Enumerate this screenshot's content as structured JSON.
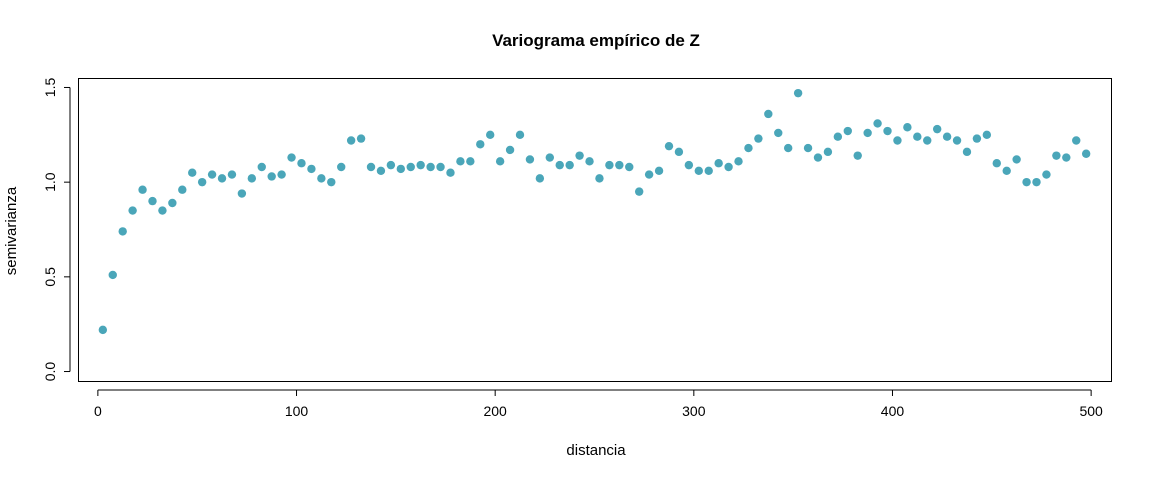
{
  "chart_data": {
    "type": "scatter",
    "title": "Variograma empírico de Z",
    "xlabel": "distancia",
    "ylabel": "semivarianza",
    "xlim": [
      -10,
      510
    ],
    "ylim": [
      -0.05,
      1.55
    ],
    "x_ticks": [
      0,
      100,
      200,
      300,
      400,
      500
    ],
    "y_ticks": [
      0.0,
      0.5,
      1.0,
      1.5
    ],
    "x_tick_labels": [
      "0",
      "100",
      "200",
      "300",
      "400",
      "500"
    ],
    "y_tick_labels": [
      "0.0",
      "0.5",
      "1.0",
      "1.5"
    ],
    "grid": false,
    "point_color": "#4aa6b9",
    "series": [
      {
        "x": [
          2.5,
          7.5,
          12.5,
          17.5,
          22.5,
          27.5,
          32.5,
          37.5,
          42.5,
          47.5,
          52.5,
          57.5,
          62.5,
          67.5,
          72.5,
          77.5,
          82.5,
          87.5,
          92.5,
          97.5,
          102.5,
          107.5,
          112.5,
          117.5,
          122.5,
          127.5,
          132.5,
          137.5,
          142.5,
          147.5,
          152.5,
          157.5,
          162.5,
          167.5,
          172.5,
          177.5,
          182.5,
          187.5,
          192.5,
          197.5,
          202.5,
          207.5,
          212.5,
          217.5,
          222.5,
          227.5,
          232.5,
          237.5,
          242.5,
          247.5,
          252.5,
          257.5,
          262.5,
          267.5,
          272.5,
          277.5,
          282.5,
          287.5,
          292.5,
          297.5,
          302.5,
          307.5,
          312.5,
          317.5,
          322.5,
          327.5,
          332.5,
          337.5,
          342.5,
          347.5,
          352.5,
          357.5,
          362.5,
          367.5,
          372.5,
          377.5,
          382.5,
          387.5,
          392.5,
          397.5,
          402.5,
          407.5,
          412.5,
          417.5,
          422.5,
          427.5,
          432.5,
          437.5,
          442.5,
          447.5,
          452.5,
          457.5,
          462.5,
          467.5,
          472.5,
          477.5,
          482.5,
          487.5,
          492.5,
          497.5
        ],
        "y": [
          0.22,
          0.51,
          0.74,
          0.85,
          0.96,
          0.9,
          0.85,
          0.89,
          0.96,
          1.05,
          1.0,
          1.04,
          1.02,
          1.04,
          0.94,
          1.02,
          1.08,
          1.03,
          1.04,
          1.13,
          1.1,
          1.07,
          1.02,
          1.0,
          1.08,
          1.22,
          1.23,
          1.08,
          1.06,
          1.09,
          1.07,
          1.08,
          1.09,
          1.08,
          1.08,
          1.05,
          1.11,
          1.11,
          1.2,
          1.25,
          1.11,
          1.17,
          1.25,
          1.12,
          1.02,
          1.13,
          1.09,
          1.09,
          1.14,
          1.11,
          1.02,
          1.09,
          1.09,
          1.08,
          0.95,
          1.04,
          1.06,
          1.19,
          1.16,
          1.09,
          1.06,
          1.06,
          1.1,
          1.08,
          1.11,
          1.18,
          1.23,
          1.36,
          1.26,
          1.18,
          1.47,
          1.18,
          1.13,
          1.16,
          1.24,
          1.27,
          1.14,
          1.26,
          1.31,
          1.27,
          1.22,
          1.29,
          1.24,
          1.22,
          1.28,
          1.24,
          1.22,
          1.16,
          1.23,
          1.25,
          1.1,
          1.06,
          1.12,
          1.0,
          1.0,
          1.04,
          1.14,
          1.13,
          1.22,
          1.15
        ]
      }
    ]
  }
}
